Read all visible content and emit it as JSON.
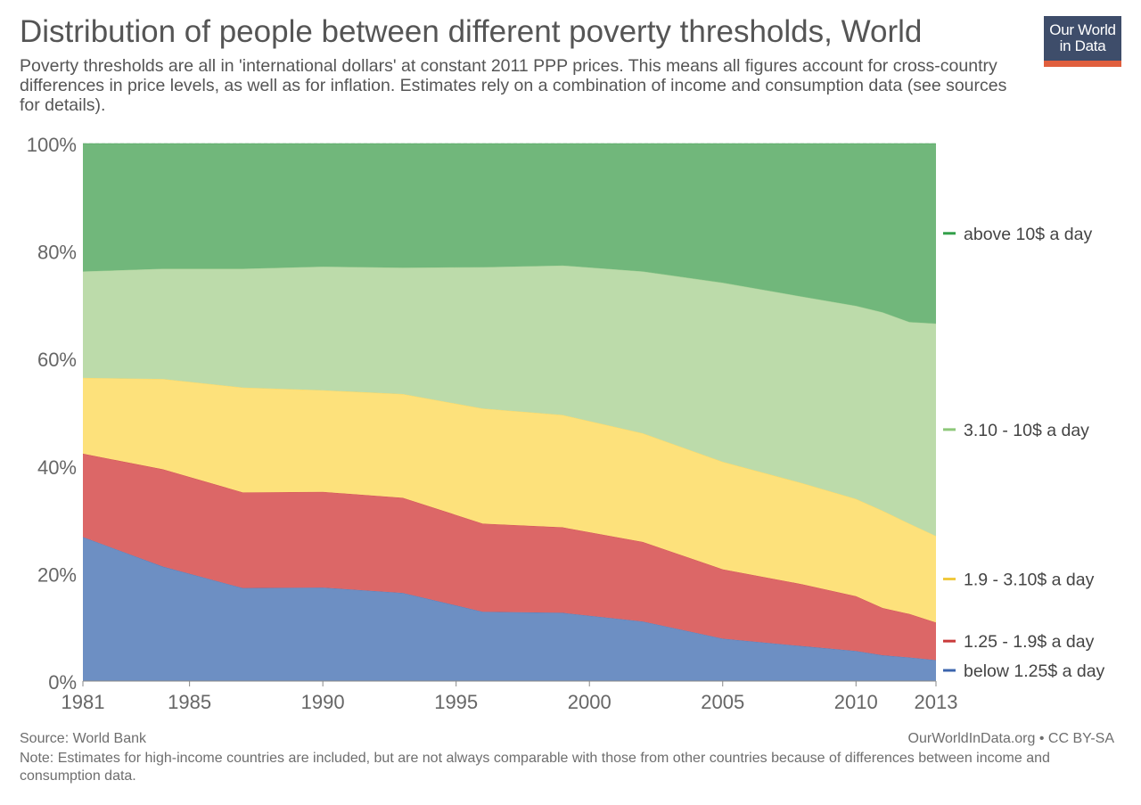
{
  "title": "Distribution of people between different poverty thresholds, World",
  "subtitle": "Poverty thresholds are all in 'international dollars' at constant 2011 PPP prices. This means all figures account for cross-country differences in price levels, as well as for inflation. Estimates rely on a combination of income and consumption data (see sources for details).",
  "logo": {
    "line1": "Our World",
    "line2": "in Data"
  },
  "footer": {
    "source": "Source: World Bank",
    "license": "OurWorldInData.org • CC BY-SA",
    "note": "Note: Estimates for high-income countries are included, but are not always comparable with those from other countries because of differences between income and consumption data."
  },
  "chart_data": {
    "type": "area",
    "stacked": true,
    "x": [
      1981,
      1984,
      1987,
      1990,
      1993,
      1996,
      1999,
      2002,
      2005,
      2008,
      2010,
      2011,
      2012,
      2013
    ],
    "x_ticks": [
      1981,
      1985,
      1990,
      1995,
      2000,
      2005,
      2010,
      2013
    ],
    "y_ticks": [
      "0%",
      "20%",
      "40%",
      "60%",
      "80%",
      "100%"
    ],
    "ylim": [
      0,
      100
    ],
    "grid": true,
    "legend_position": "right",
    "series": [
      {
        "name": "below 1.25$ a day",
        "color": "#6d8fc3",
        "line_color": "#3c64ad",
        "values": [
          26.8,
          21.3,
          17.3,
          17.4,
          16.4,
          12.9,
          12.7,
          11.1,
          7.9,
          6.5,
          5.6,
          4.8,
          4.4,
          3.9
        ]
      },
      {
        "name": "1.25 - 1.9$ a day",
        "color": "#dc6767",
        "line_color": "#c93a3a",
        "values": [
          15.5,
          18.1,
          17.8,
          17.8,
          17.7,
          16.4,
          15.9,
          14.8,
          12.9,
          11.5,
          10.2,
          8.8,
          8.1,
          7.0
        ]
      },
      {
        "name": "1.9 - 3.10$ a day",
        "color": "#fde17b",
        "line_color": "#f0c93f",
        "values": [
          14.1,
          16.8,
          19.5,
          18.9,
          19.3,
          21.4,
          20.9,
          20.2,
          20.0,
          18.8,
          18.1,
          18.1,
          16.8,
          16.1
        ]
      },
      {
        "name": "3.10 - 10$ a day",
        "color": "#bcdbaa",
        "line_color": "#8ec87a",
        "values": [
          19.8,
          20.5,
          22.1,
          23.0,
          23.5,
          26.3,
          27.8,
          30.1,
          33.3,
          34.7,
          35.9,
          36.9,
          37.5,
          39.5
        ]
      },
      {
        "name": "above 10$ a day",
        "color": "#71b77b",
        "line_color": "#33a04a",
        "values": [
          23.8,
          23.3,
          23.3,
          22.9,
          23.1,
          23.0,
          22.7,
          23.8,
          25.9,
          28.5,
          30.2,
          31.4,
          33.2,
          33.5
        ]
      }
    ]
  }
}
